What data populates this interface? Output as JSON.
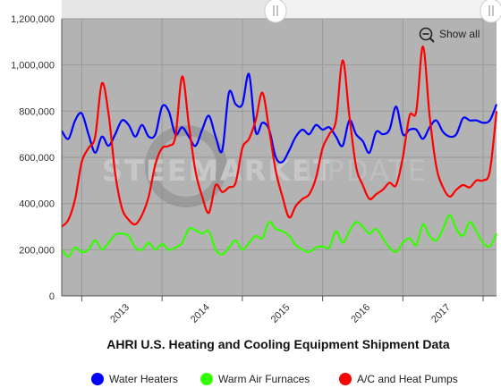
{
  "chart_data": {
    "type": "line",
    "title": "AHRI U.S. Heating and Cooling Equipment Shipment Data",
    "xlabel": "",
    "ylabel": "",
    "ylim": [
      0,
      1200000
    ],
    "yticks": [
      "0",
      "200,000",
      "400,000",
      "600,000",
      "800,000",
      "1,000,000",
      "1,200,000"
    ],
    "ytick_values": [
      0,
      200000,
      400000,
      600000,
      800000,
      1000000,
      1200000
    ],
    "xticks": [
      "2013",
      "2014",
      "2015",
      "2016",
      "2017"
    ],
    "x_start": "2012-10",
    "x_end": "2018-03",
    "x_labels_months": [
      "2012-10",
      "2012-11",
      "2012-12",
      "2013-01",
      "2013-02",
      "2013-03",
      "2013-04",
      "2013-05",
      "2013-06",
      "2013-07",
      "2013-08",
      "2013-09",
      "2013-10",
      "2013-11",
      "2013-12",
      "2014-01",
      "2014-02",
      "2014-03",
      "2014-04",
      "2014-05",
      "2014-06",
      "2014-07",
      "2014-08",
      "2014-09",
      "2014-10",
      "2014-11",
      "2014-12",
      "2015-01",
      "2015-02",
      "2015-03",
      "2015-04",
      "2015-05",
      "2015-06",
      "2015-07",
      "2015-08",
      "2015-09",
      "2015-10",
      "2015-11",
      "2015-12",
      "2016-01",
      "2016-02",
      "2016-03",
      "2016-04",
      "2016-05",
      "2016-06",
      "2016-07",
      "2016-08",
      "2016-09",
      "2016-10",
      "2016-11",
      "2016-12",
      "2017-01",
      "2017-02",
      "2017-03",
      "2017-04",
      "2017-05",
      "2017-06",
      "2017-07",
      "2017-08",
      "2017-09",
      "2017-10",
      "2017-11",
      "2017-12",
      "2018-01",
      "2018-02",
      "2018-03"
    ],
    "grid": true,
    "legend_position": "bottom",
    "background": "#b3b3b3",
    "series": [
      {
        "name": "Water Heaters",
        "color": "#0000ff",
        "values": [
          715000,
          680000,
          760000,
          790000,
          700000,
          620000,
          690000,
          650000,
          700000,
          760000,
          740000,
          690000,
          740000,
          690000,
          700000,
          820000,
          800000,
          700000,
          730000,
          690000,
          650000,
          720000,
          780000,
          690000,
          630000,
          880000,
          830000,
          830000,
          960000,
          710000,
          750000,
          720000,
          600000,
          580000,
          630000,
          690000,
          720000,
          700000,
          740000,
          720000,
          730000,
          690000,
          650000,
          760000,
          700000,
          670000,
          620000,
          710000,
          700000,
          720000,
          820000,
          700000,
          720000,
          720000,
          680000,
          730000,
          760000,
          710000,
          690000,
          700000,
          770000,
          760000,
          760000,
          750000,
          760000,
          830000
        ]
      },
      {
        "name": "Warm Air Furnaces",
        "color": "#33ff00",
        "values": [
          200000,
          170000,
          210000,
          190000,
          200000,
          240000,
          200000,
          230000,
          265000,
          270000,
          260000,
          210000,
          200000,
          230000,
          200000,
          225000,
          200000,
          210000,
          230000,
          290000,
          285000,
          270000,
          280000,
          200000,
          180000,
          210000,
          240000,
          200000,
          230000,
          260000,
          250000,
          320000,
          290000,
          280000,
          260000,
          220000,
          200000,
          190000,
          210000,
          215000,
          210000,
          280000,
          230000,
          280000,
          320000,
          300000,
          270000,
          290000,
          250000,
          210000,
          190000,
          230000,
          250000,
          220000,
          310000,
          260000,
          240000,
          290000,
          350000,
          290000,
          260000,
          320000,
          280000,
          230000,
          215000,
          270000
        ]
      },
      {
        "name": "A/C and Heat Pumps",
        "color": "#ff0000",
        "values": [
          300000,
          330000,
          420000,
          580000,
          640000,
          690000,
          920000,
          790000,
          530000,
          380000,
          330000,
          310000,
          350000,
          430000,
          570000,
          640000,
          650000,
          690000,
          950000,
          740000,
          540000,
          430000,
          360000,
          480000,
          450000,
          470000,
          490000,
          640000,
          680000,
          760000,
          880000,
          720000,
          540000,
          430000,
          340000,
          390000,
          420000,
          440000,
          510000,
          640000,
          700000,
          760000,
          1020000,
          780000,
          560000,
          480000,
          420000,
          440000,
          460000,
          490000,
          480000,
          600000,
          780000,
          800000,
          1080000,
          780000,
          560000,
          470000,
          430000,
          460000,
          480000,
          470000,
          500000,
          500000,
          540000,
          800000
        ]
      }
    ]
  },
  "toolbar": {
    "show_all_label": "Show all",
    "show_all_icon": "zoom-out-icon"
  },
  "watermark": {
    "left": "STEEL",
    "middle": "MARKET",
    "right": "UPDATE"
  },
  "navigator_handle_icon": "grip-handle-icon"
}
